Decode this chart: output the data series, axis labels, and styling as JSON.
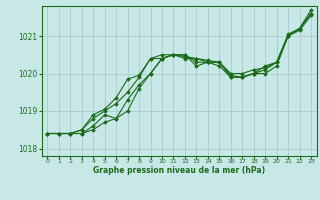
{
  "background_color": "#c8e8e8",
  "grid_color": "#aacccc",
  "line_color": "#1a6b1a",
  "title": "Graphe pression niveau de la mer (hPa)",
  "xlim": [
    -0.5,
    23.5
  ],
  "ylim": [
    1017.8,
    1021.8
  ],
  "yticks": [
    1018,
    1019,
    1020,
    1021
  ],
  "xticks": [
    0,
    1,
    2,
    3,
    4,
    5,
    6,
    7,
    8,
    9,
    10,
    11,
    12,
    13,
    14,
    15,
    16,
    17,
    18,
    19,
    20,
    21,
    22,
    23
  ],
  "series": [
    [
      1018.4,
      1018.4,
      1018.4,
      1018.4,
      1018.5,
      1018.7,
      1018.8,
      1019.0,
      1019.6,
      1020.0,
      1020.4,
      1020.5,
      1020.5,
      1020.3,
      1020.3,
      1020.3,
      1019.9,
      1019.9,
      1020.0,
      1020.0,
      1020.2,
      1021.0,
      1021.2,
      1021.6
    ],
    [
      1018.4,
      1018.4,
      1018.4,
      1018.4,
      1018.6,
      1018.9,
      1018.8,
      1019.3,
      1019.7,
      1020.0,
      1020.4,
      1020.5,
      1020.5,
      1020.2,
      1020.3,
      1020.2,
      1019.9,
      1019.9,
      1020.0,
      1020.1,
      1020.3,
      1021.0,
      1021.2,
      1021.7
    ],
    [
      1018.4,
      1018.4,
      1018.4,
      1018.5,
      1018.8,
      1019.0,
      1019.2,
      1019.5,
      1019.9,
      1020.4,
      1020.4,
      1020.5,
      1020.4,
      1020.4,
      1020.3,
      1020.3,
      1019.95,
      1019.9,
      1020.0,
      1020.2,
      1020.3,
      1021.0,
      1021.15,
      1021.55
    ],
    [
      1018.4,
      1018.4,
      1018.4,
      1018.5,
      1018.9,
      1019.05,
      1019.35,
      1019.85,
      1019.95,
      1020.4,
      1020.5,
      1020.5,
      1020.45,
      1020.4,
      1020.35,
      1020.3,
      1020.0,
      1020.0,
      1020.1,
      1020.15,
      1020.3,
      1021.05,
      1021.2,
      1021.6
    ]
  ]
}
